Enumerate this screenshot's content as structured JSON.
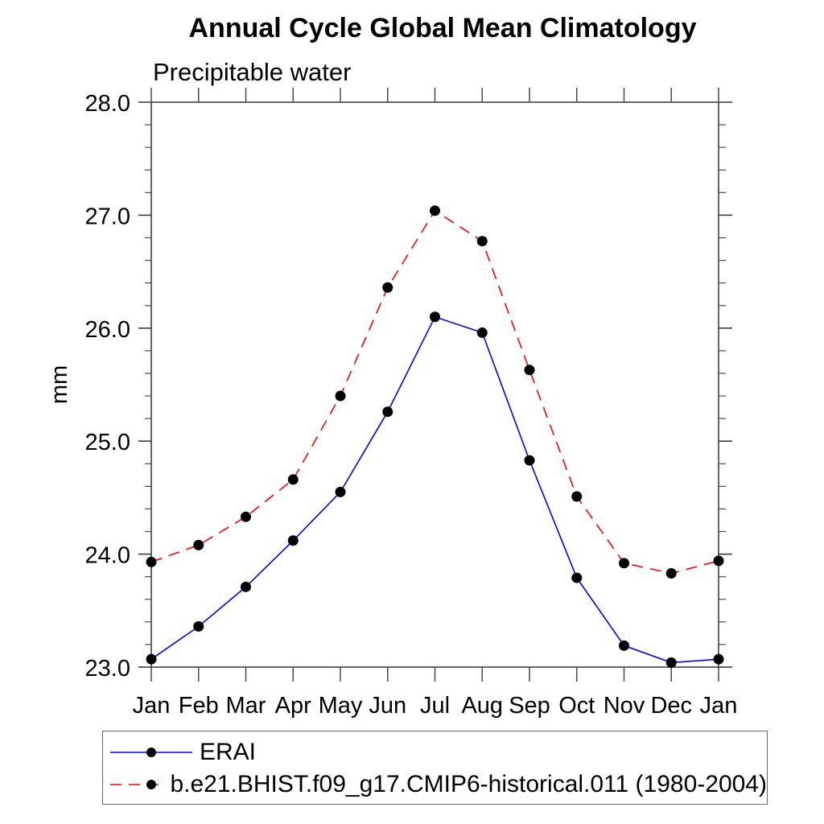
{
  "chart_data": {
    "type": "line",
    "title": "Annual Cycle Global Mean Climatology",
    "subtitle": "Precipitable water",
    "ylabel": "mm",
    "xlabel": "",
    "categories": [
      "Jan",
      "Feb",
      "Mar",
      "Apr",
      "May",
      "Jun",
      "Jul",
      "Aug",
      "Sep",
      "Oct",
      "Nov",
      "Dec",
      "Jan"
    ],
    "ylim": [
      23.0,
      28.0
    ],
    "ytick_major": 1.0,
    "ytick_minor": 0.2,
    "ytick_label_format": "one-decimal",
    "grid": false,
    "legend_position": "bottom-left-box",
    "frame_color": "#333333",
    "tick_color": "#4a4a4a",
    "marker_radius": 6.5,
    "series": [
      {
        "name": "ERAI",
        "color": "#0000ff",
        "line_style": "solid",
        "marker": "circle",
        "marker_color": "#000000",
        "values": [
          23.07,
          23.36,
          23.71,
          24.12,
          24.55,
          25.26,
          26.1,
          25.96,
          24.83,
          23.79,
          23.19,
          23.04,
          23.07
        ]
      },
      {
        "name": "b.e21.BHIST.f09_g17.CMIP6-historical.011 (1980-2004)",
        "color": "#ff0000",
        "line_style": "dashed",
        "marker": "circle",
        "marker_color": "#000000",
        "values": [
          23.93,
          24.08,
          24.33,
          24.66,
          25.4,
          26.36,
          27.04,
          26.77,
          25.63,
          24.51,
          23.92,
          23.83,
          23.94
        ]
      }
    ]
  }
}
